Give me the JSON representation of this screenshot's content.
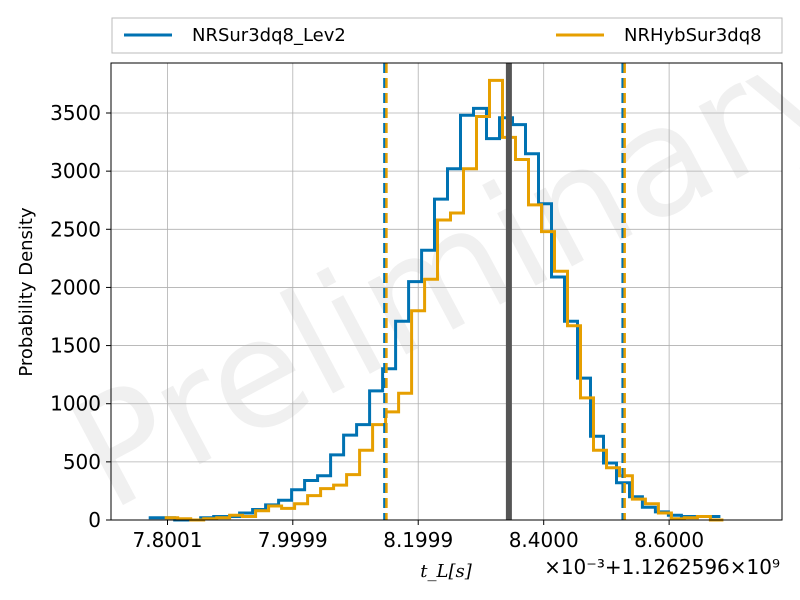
{
  "chart_data": {
    "type": "histogram",
    "ylabel": "Probability Density",
    "xlabel": "t_L[s]",
    "x_offset_label": "×10⁻³+1.1262596×10⁹",
    "watermark": "Preliminary",
    "xlim": [
      7.71,
      8.78
    ],
    "ylim": [
      0,
      3930
    ],
    "xticks": [
      7.8001,
      7.9999,
      8.1999,
      8.4,
      8.6
    ],
    "xtick_labels": [
      "7.8001",
      "7.9999",
      "8.1999",
      "8.4000",
      "8.6000"
    ],
    "yticks": [
      0,
      500,
      1000,
      1500,
      2000,
      2500,
      3000,
      3500
    ],
    "ytick_labels": [
      "0",
      "500",
      "1000",
      "1500",
      "2000",
      "2500",
      "3000",
      "3500"
    ],
    "grid": true,
    "legend_position": "top-outside",
    "reference_line": {
      "x": 8.3445,
      "color": "#555555"
    },
    "series": [
      {
        "name": "NRSur3dq8_Lev2",
        "color": "#0072B2",
        "bin_start": 7.7701,
        "bin_width": 0.02072,
        "values": [
          20,
          20,
          0,
          0,
          20,
          30,
          30,
          60,
          90,
          130,
          170,
          260,
          340,
          380,
          560,
          730,
          820,
          1110,
          1300,
          1710,
          2050,
          2320,
          2760,
          3020,
          3480,
          3540,
          3280,
          3460,
          3400,
          3150,
          2720,
          2090,
          1710,
          1220,
          720,
          490,
          320,
          200,
          110,
          70,
          40,
          30,
          30,
          30
        ]
      },
      {
        "name": "NRHybSur3dq8",
        "color": "#E69F00",
        "bin_start": 7.7956,
        "bin_width": 0.02072,
        "values": [
          20,
          10,
          0,
          10,
          20,
          40,
          30,
          80,
          120,
          100,
          140,
          210,
          270,
          300,
          390,
          600,
          820,
          930,
          1090,
          1800,
          2070,
          2580,
          2640,
          3020,
          3470,
          3780,
          3290,
          3100,
          2710,
          2480,
          2140,
          1670,
          1050,
          600,
          450,
          380,
          180,
          140,
          60,
          10,
          20,
          30,
          0
        ]
      }
    ],
    "credible_bounds": [
      {
        "x": 8.1476,
        "color": "#0072B2"
      },
      {
        "x": 8.1476,
        "color": "#E69F00"
      },
      {
        "x": 8.5275,
        "color": "#0072B2"
      },
      {
        "x": 8.5275,
        "color": "#E69F00"
      }
    ]
  }
}
